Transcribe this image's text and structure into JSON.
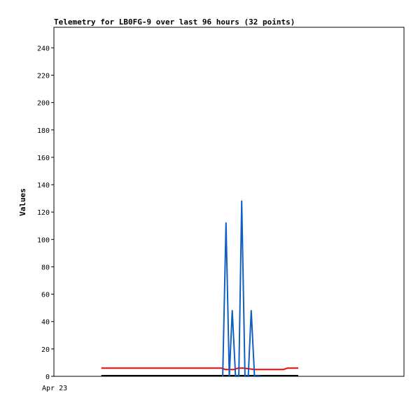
{
  "chart_data": {
    "type": "line",
    "title": "Telemetry for LB0FG-9 over last 96 hours (32 points)",
    "xlabel": "",
    "ylabel": "Values",
    "x_tick_labels": [
      "Apr 23"
    ],
    "y_ticks": [
      0,
      20,
      40,
      60,
      80,
      100,
      120,
      140,
      160,
      180,
      200,
      220,
      240
    ],
    "ylim": [
      0,
      255
    ],
    "xlim": [
      0,
      96
    ],
    "grid": false,
    "legend": "none",
    "series": [
      {
        "color": "#ff0000",
        "x": [
          13,
          46,
          47,
          48.5,
          49.5,
          50.5,
          52,
          55,
          57,
          59,
          61,
          63,
          64,
          65,
          67
        ],
        "values": [
          6,
          6,
          5,
          5,
          5,
          6,
          6,
          5,
          5,
          5,
          5,
          5,
          6,
          6,
          6
        ]
      },
      {
        "color": "#000000",
        "x": [
          13,
          67
        ],
        "values": [
          0.5,
          0.5
        ]
      },
      {
        "color": "#1060c0",
        "x": [
          46.3,
          47.2,
          48.1,
          48.9,
          49.8,
          50.7,
          51.5,
          52.4,
          53.3,
          54.1,
          55,
          55.9,
          56.7
        ],
        "values": [
          0,
          112,
          0,
          48,
          0,
          0,
          128,
          0,
          0,
          48,
          0,
          0,
          0
        ]
      }
    ]
  }
}
